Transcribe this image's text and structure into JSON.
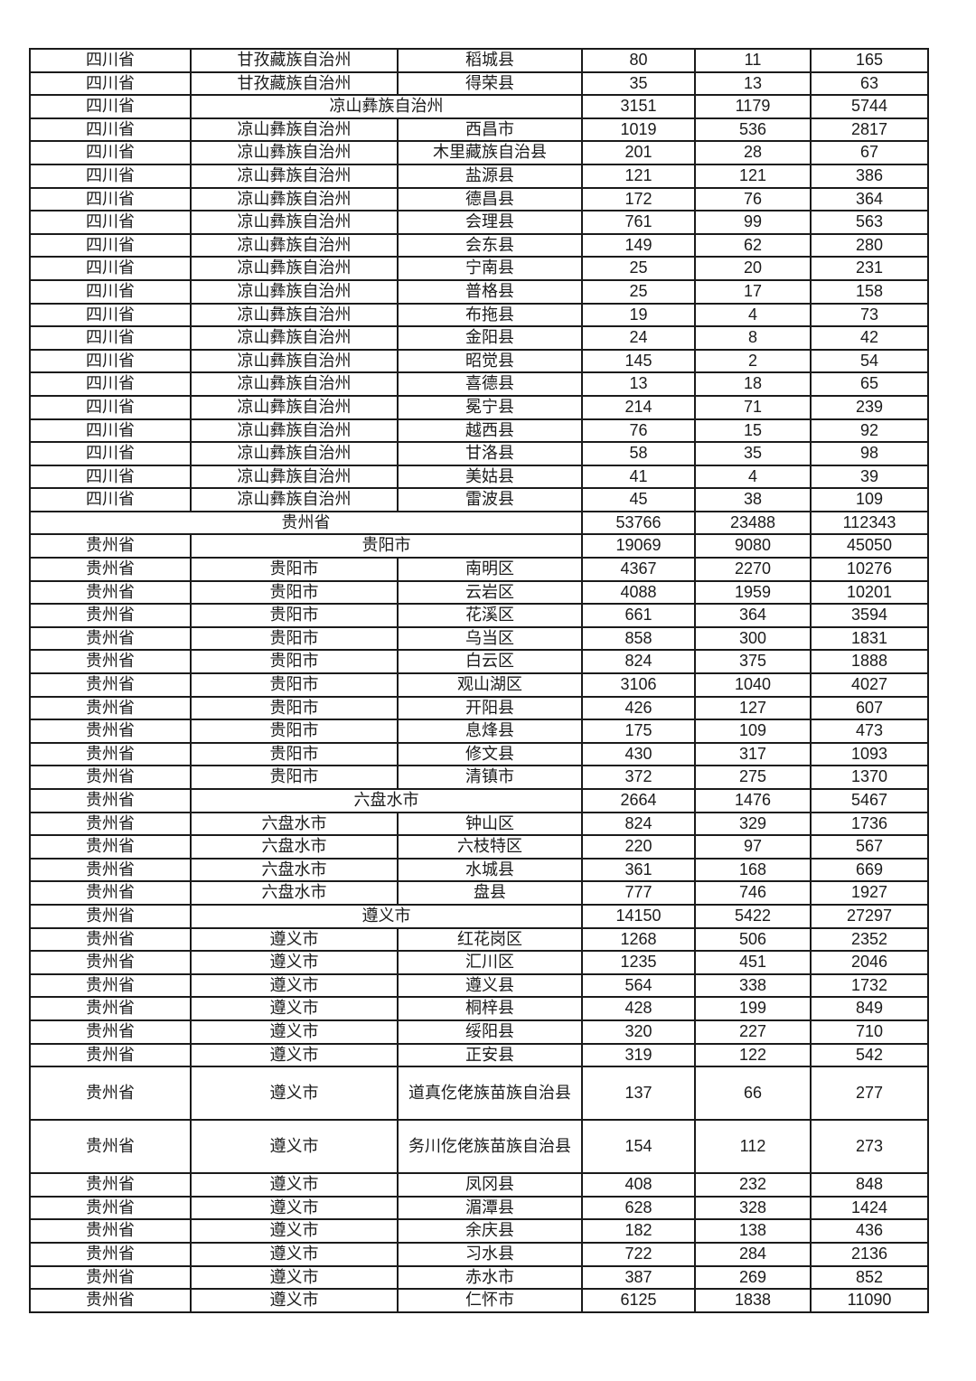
{
  "page": {
    "background_color": "#ffffff",
    "border_color": "#1b1b1b",
    "text_color": "#1b1b1b"
  },
  "table": {
    "rows": [
      {
        "type": "normal",
        "cells": [
          "四川省",
          "甘孜藏族自治州",
          "稻城县",
          "80",
          "11",
          "165"
        ]
      },
      {
        "type": "normal",
        "cells": [
          "四川省",
          "甘孜藏族自治州",
          "得荣县",
          "35",
          "13",
          "63"
        ]
      },
      {
        "type": "pref_merged",
        "cells": [
          "四川省",
          "凉山彝族自治州",
          "3151",
          "1179",
          "5744"
        ]
      },
      {
        "type": "normal",
        "cells": [
          "四川省",
          "凉山彝族自治州",
          "西昌市",
          "1019",
          "536",
          "2817"
        ]
      },
      {
        "type": "normal",
        "cells": [
          "四川省",
          "凉山彝族自治州",
          "木里藏族自治县",
          "201",
          "28",
          "67"
        ]
      },
      {
        "type": "normal",
        "cells": [
          "四川省",
          "凉山彝族自治州",
          "盐源县",
          "121",
          "121",
          "386"
        ]
      },
      {
        "type": "normal",
        "cells": [
          "四川省",
          "凉山彝族自治州",
          "德昌县",
          "172",
          "76",
          "364"
        ]
      },
      {
        "type": "normal",
        "cells": [
          "四川省",
          "凉山彝族自治州",
          "会理县",
          "761",
          "99",
          "563"
        ]
      },
      {
        "type": "normal",
        "cells": [
          "四川省",
          "凉山彝族自治州",
          "会东县",
          "149",
          "62",
          "280"
        ]
      },
      {
        "type": "normal",
        "cells": [
          "四川省",
          "凉山彝族自治州",
          "宁南县",
          "25",
          "20",
          "231"
        ]
      },
      {
        "type": "normal",
        "cells": [
          "四川省",
          "凉山彝族自治州",
          "普格县",
          "25",
          "17",
          "158"
        ]
      },
      {
        "type": "normal",
        "cells": [
          "四川省",
          "凉山彝族自治州",
          "布拖县",
          "19",
          "4",
          "73"
        ]
      },
      {
        "type": "normal",
        "cells": [
          "四川省",
          "凉山彝族自治州",
          "金阳县",
          "24",
          "8",
          "42"
        ]
      },
      {
        "type": "normal",
        "cells": [
          "四川省",
          "凉山彝族自治州",
          "昭觉县",
          "145",
          "2",
          "54"
        ]
      },
      {
        "type": "normal",
        "cells": [
          "四川省",
          "凉山彝族自治州",
          "喜德县",
          "13",
          "18",
          "65"
        ]
      },
      {
        "type": "normal",
        "cells": [
          "四川省",
          "凉山彝族自治州",
          "冕宁县",
          "214",
          "71",
          "239"
        ]
      },
      {
        "type": "normal",
        "cells": [
          "四川省",
          "凉山彝族自治州",
          "越西县",
          "76",
          "15",
          "92"
        ]
      },
      {
        "type": "normal",
        "cells": [
          "四川省",
          "凉山彝族自治州",
          "甘洛县",
          "58",
          "35",
          "98"
        ]
      },
      {
        "type": "normal",
        "cells": [
          "四川省",
          "凉山彝族自治州",
          "美姑县",
          "41",
          "4",
          "39"
        ]
      },
      {
        "type": "normal",
        "cells": [
          "四川省",
          "凉山彝族自治州",
          "雷波县",
          "45",
          "38",
          "109"
        ]
      },
      {
        "type": "prov_merged",
        "cells": [
          "贵州省",
          "53766",
          "23488",
          "112343"
        ]
      },
      {
        "type": "pref_merged",
        "cells": [
          "贵州省",
          "贵阳市",
          "19069",
          "9080",
          "45050"
        ]
      },
      {
        "type": "normal",
        "cells": [
          "贵州省",
          "贵阳市",
          "南明区",
          "4367",
          "2270",
          "10276"
        ]
      },
      {
        "type": "normal",
        "cells": [
          "贵州省",
          "贵阳市",
          "云岩区",
          "4088",
          "1959",
          "10201"
        ]
      },
      {
        "type": "normal",
        "cells": [
          "贵州省",
          "贵阳市",
          "花溪区",
          "661",
          "364",
          "3594"
        ]
      },
      {
        "type": "normal",
        "cells": [
          "贵州省",
          "贵阳市",
          "乌当区",
          "858",
          "300",
          "1831"
        ]
      },
      {
        "type": "normal",
        "cells": [
          "贵州省",
          "贵阳市",
          "白云区",
          "824",
          "375",
          "1888"
        ]
      },
      {
        "type": "normal",
        "cells": [
          "贵州省",
          "贵阳市",
          "观山湖区",
          "3106",
          "1040",
          "4027"
        ]
      },
      {
        "type": "normal",
        "cells": [
          "贵州省",
          "贵阳市",
          "开阳县",
          "426",
          "127",
          "607"
        ]
      },
      {
        "type": "normal",
        "cells": [
          "贵州省",
          "贵阳市",
          "息烽县",
          "175",
          "109",
          "473"
        ]
      },
      {
        "type": "normal",
        "cells": [
          "贵州省",
          "贵阳市",
          "修文县",
          "430",
          "317",
          "1093"
        ]
      },
      {
        "type": "normal",
        "cells": [
          "贵州省",
          "贵阳市",
          "清镇市",
          "372",
          "275",
          "1370"
        ]
      },
      {
        "type": "pref_merged",
        "cells": [
          "贵州省",
          "六盘水市",
          "2664",
          "1476",
          "5467"
        ]
      },
      {
        "type": "normal",
        "cells": [
          "贵州省",
          "六盘水市",
          "钟山区",
          "824",
          "329",
          "1736"
        ]
      },
      {
        "type": "normal",
        "cells": [
          "贵州省",
          "六盘水市",
          "六枝特区",
          "220",
          "97",
          "567"
        ]
      },
      {
        "type": "normal",
        "cells": [
          "贵州省",
          "六盘水市",
          "水城县",
          "361",
          "168",
          "669"
        ]
      },
      {
        "type": "normal",
        "cells": [
          "贵州省",
          "六盘水市",
          "盘县",
          "777",
          "746",
          "1927"
        ]
      },
      {
        "type": "pref_merged",
        "cells": [
          "贵州省",
          "遵义市",
          "14150",
          "5422",
          "27297"
        ]
      },
      {
        "type": "normal",
        "cells": [
          "贵州省",
          "遵义市",
          "红花岗区",
          "1268",
          "506",
          "2352"
        ]
      },
      {
        "type": "normal",
        "cells": [
          "贵州省",
          "遵义市",
          "汇川区",
          "1235",
          "451",
          "2046"
        ]
      },
      {
        "type": "normal",
        "cells": [
          "贵州省",
          "遵义市",
          "遵义县",
          "564",
          "338",
          "1732"
        ]
      },
      {
        "type": "normal",
        "cells": [
          "贵州省",
          "遵义市",
          "桐梓县",
          "428",
          "199",
          "849"
        ]
      },
      {
        "type": "normal",
        "cells": [
          "贵州省",
          "遵义市",
          "绥阳县",
          "320",
          "227",
          "710"
        ]
      },
      {
        "type": "normal",
        "cells": [
          "贵州省",
          "遵义市",
          "正安县",
          "319",
          "122",
          "542"
        ]
      },
      {
        "type": "tall",
        "cells": [
          "贵州省",
          "遵义市",
          "道真仡佬族苗族自治县",
          "137",
          "66",
          "277"
        ]
      },
      {
        "type": "tall",
        "cells": [
          "贵州省",
          "遵义市",
          "务川仡佬族苗族自治县",
          "154",
          "112",
          "273"
        ]
      },
      {
        "type": "normal",
        "cells": [
          "贵州省",
          "遵义市",
          "凤冈县",
          "408",
          "232",
          "848"
        ]
      },
      {
        "type": "normal",
        "cells": [
          "贵州省",
          "遵义市",
          "湄潭县",
          "628",
          "328",
          "1424"
        ]
      },
      {
        "type": "normal",
        "cells": [
          "贵州省",
          "遵义市",
          "余庆县",
          "182",
          "138",
          "436"
        ]
      },
      {
        "type": "normal",
        "cells": [
          "贵州省",
          "遵义市",
          "习水县",
          "722",
          "284",
          "2136"
        ]
      },
      {
        "type": "normal",
        "cells": [
          "贵州省",
          "遵义市",
          "赤水市",
          "387",
          "269",
          "852"
        ]
      },
      {
        "type": "normal",
        "cells": [
          "贵州省",
          "遵义市",
          "仁怀市",
          "6125",
          "1838",
          "11090"
        ]
      }
    ]
  }
}
